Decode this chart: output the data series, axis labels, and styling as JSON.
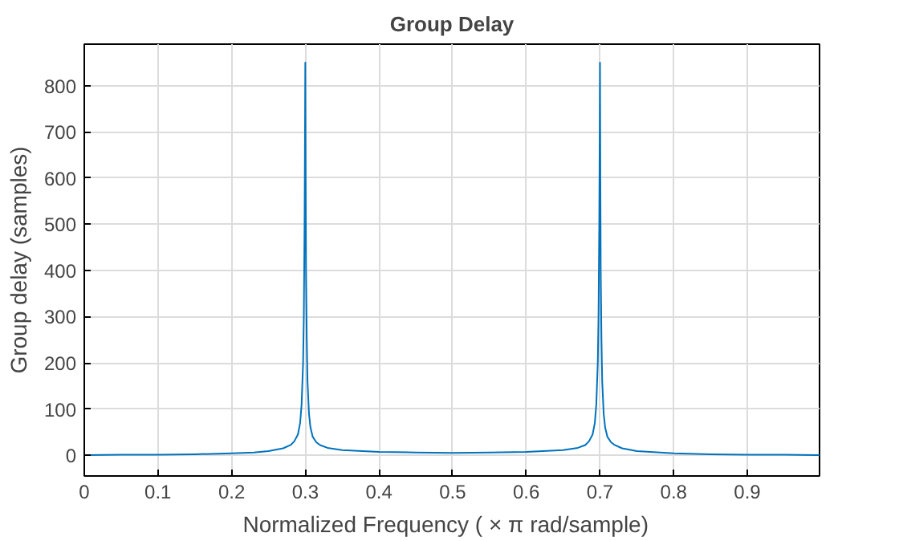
{
  "chart_data": {
    "type": "line",
    "title": "Group Delay",
    "xlabel": "Normalized Frequency  ( × π  rad/sample)",
    "ylabel": "Group delay (samples)",
    "x": [
      0,
      0.05,
      0.1,
      0.15,
      0.2,
      0.23,
      0.25,
      0.27,
      0.28,
      0.285,
      0.29,
      0.293,
      0.295,
      0.297,
      0.298,
      0.299,
      0.2995,
      0.3,
      0.3005,
      0.301,
      0.302,
      0.303,
      0.305,
      0.307,
      0.31,
      0.315,
      0.32,
      0.33,
      0.35,
      0.4,
      0.45,
      0.5,
      0.55,
      0.6,
      0.65,
      0.67,
      0.68,
      0.685,
      0.69,
      0.693,
      0.695,
      0.697,
      0.698,
      0.699,
      0.6995,
      0.7,
      0.7005,
      0.701,
      0.702,
      0.703,
      0.705,
      0.707,
      0.71,
      0.715,
      0.72,
      0.73,
      0.75,
      0.8,
      0.85,
      0.9,
      0.95,
      0.998
    ],
    "series": [
      {
        "color": "#0072bd",
        "values": [
          0,
          1,
          1,
          2,
          4,
          6,
          9,
          15,
          22,
          30,
          45,
          70,
          110,
          200,
          300,
          500,
          660,
          850,
          600,
          400,
          250,
          160,
          90,
          60,
          40,
          28,
          22,
          16,
          11,
          7,
          6,
          5,
          6,
          7,
          11,
          16,
          22,
          30,
          45,
          70,
          110,
          200,
          300,
          500,
          660,
          850,
          600,
          400,
          250,
          160,
          90,
          60,
          40,
          28,
          22,
          15,
          9,
          4,
          2,
          1,
          1,
          0
        ]
      }
    ],
    "xlim": [
      0,
      0.998
    ],
    "ylim": [
      -45,
      890
    ],
    "xticks": [
      0,
      0.1,
      0.2,
      0.3,
      0.4,
      0.5,
      0.6,
      0.7,
      0.8,
      0.9
    ],
    "yticks": [
      0,
      100,
      200,
      300,
      400,
      500,
      600,
      700,
      800
    ],
    "grid": true,
    "marker": "none",
    "line_style": "solid"
  }
}
